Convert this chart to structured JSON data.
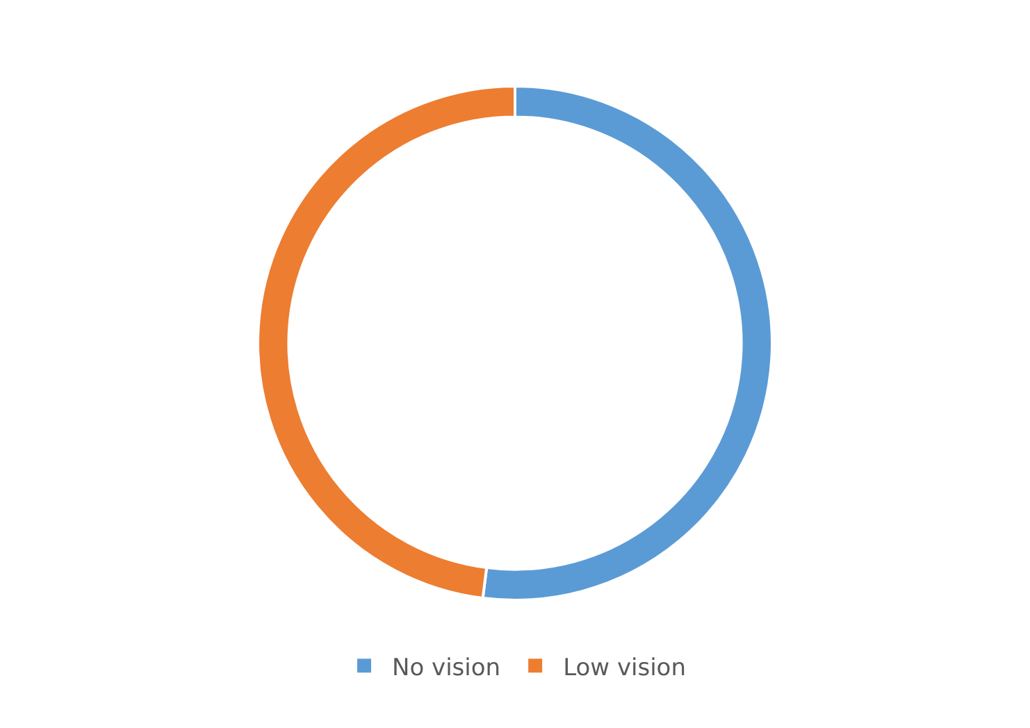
{
  "chart_data": {
    "type": "donut",
    "categories": [
      "No vision",
      "Low vision"
    ],
    "values": [
      52,
      48
    ],
    "colors": [
      "#5b9bd5",
      "#ed7d31"
    ],
    "legend": "bottom"
  }
}
